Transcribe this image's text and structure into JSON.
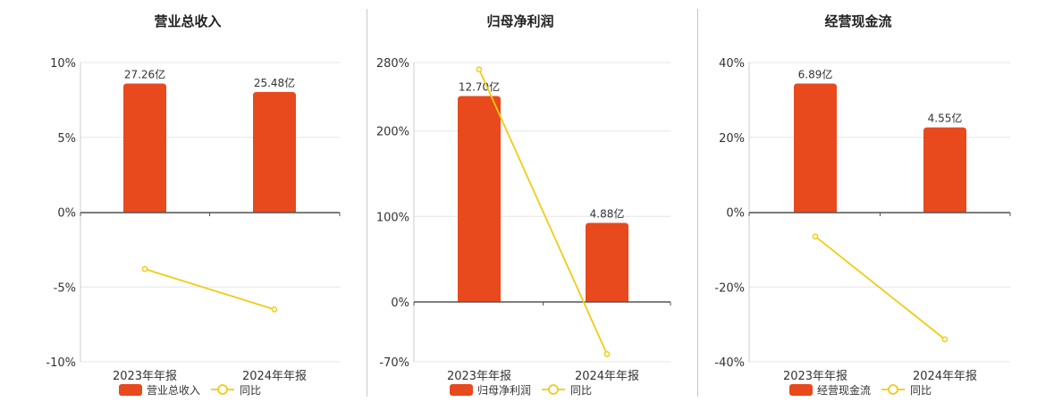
{
  "colors": {
    "bar": "#e8491d",
    "line": "#f0cc14",
    "axis": "#555555",
    "grid": "#e6e6e6"
  },
  "chart_data": [
    {
      "type": "bar",
      "title": "营业总收入",
      "categories": [
        "2023年年报",
        "2024年年报"
      ],
      "bar_values": [
        27.26,
        25.48
      ],
      "bar_labels": [
        "27.26亿",
        "25.48亿"
      ],
      "yoy": [
        -3.8,
        -6.5
      ],
      "yoy_ticks": [
        "10%",
        "5%",
        "0%",
        "-5%",
        "-10%"
      ],
      "yoy_range": [
        -10,
        10
      ],
      "legend": [
        "营业总收入",
        "同比"
      ],
      "legend_position": "bottom"
    },
    {
      "type": "bar",
      "title": "归母净利润",
      "categories": [
        "2023年年报",
        "2024年年报"
      ],
      "bar_values": [
        12.7,
        4.88
      ],
      "bar_labels": [
        "12.70亿",
        "4.88亿"
      ],
      "yoy": [
        272,
        -61
      ],
      "yoy_ticks": [
        "280%",
        "200%",
        "100%",
        "0%",
        "-70%"
      ],
      "yoy_range": [
        -70,
        280
      ],
      "legend": [
        "归母净利润",
        "同比"
      ],
      "legend_position": "bottom"
    },
    {
      "type": "bar",
      "title": "经营现金流",
      "categories": [
        "2023年年报",
        "2024年年报"
      ],
      "bar_values": [
        6.89,
        4.55
      ],
      "bar_labels": [
        "6.89亿",
        "4.55亿"
      ],
      "yoy": [
        -6.5,
        -34
      ],
      "yoy_ticks": [
        "40%",
        "20%",
        "0%",
        "-20%",
        "-40%"
      ],
      "yoy_range": [
        -40,
        40
      ],
      "legend": [
        "经营现金流",
        "同比"
      ],
      "legend_position": "bottom"
    }
  ]
}
